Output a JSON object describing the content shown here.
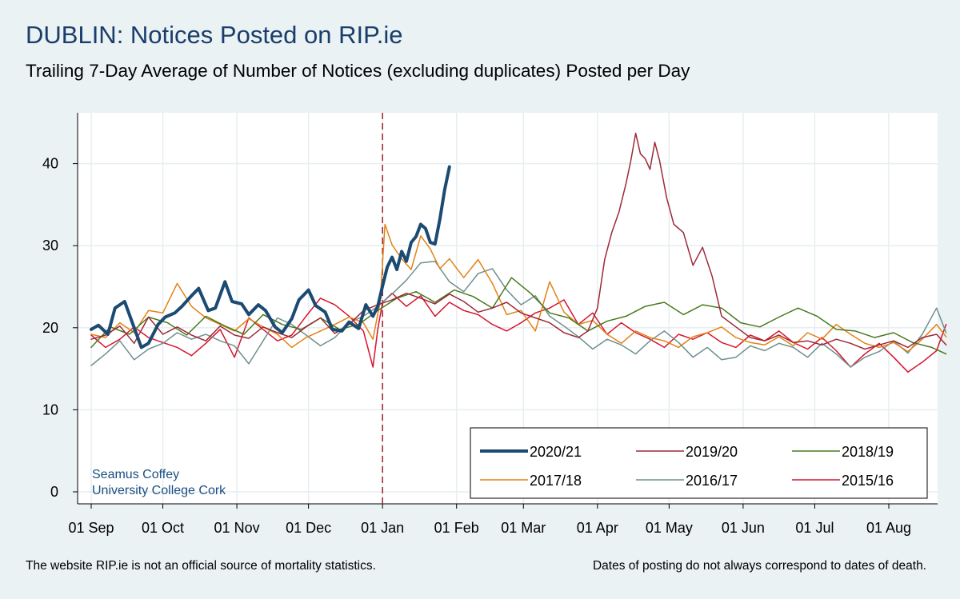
{
  "title": "DUBLIN: Notices Posted on RIP.ie",
  "subtitle": "Trailing 7-Day Average of Number of Notices (excluding duplicates) Posted per Day",
  "footnote_left": "The website RIP.ie is not an official source of mortality statistics.",
  "footnote_right": "Dates of posting do not always correspond to dates of death.",
  "credit": [
    "Seamus Coffey",
    "University College Cork"
  ],
  "colors": {
    "background": "#eaf2f3",
    "plot_background": "#ffffff",
    "grid": "#e6eef0",
    "title": "#1a3d6b",
    "credit": "#1a4f82",
    "reference_line": "#9e1e2e"
  },
  "chart_data": {
    "type": "line",
    "xlabel": "",
    "ylabel": "",
    "x_unit": "day of season (01 Sep = 0)",
    "xlim": [
      0,
      360
    ],
    "ylim": [
      0,
      46
    ],
    "grid": true,
    "yticks": [
      0,
      10,
      20,
      30,
      40
    ],
    "xticks": [
      {
        "day": 0,
        "label": "01 Sep"
      },
      {
        "day": 30,
        "label": "01 Oct"
      },
      {
        "day": 61,
        "label": "01 Nov"
      },
      {
        "day": 91,
        "label": "01 Dec"
      },
      {
        "day": 122,
        "label": "01 Jan"
      },
      {
        "day": 153,
        "label": "01 Feb"
      },
      {
        "day": 181,
        "label": "01 Mar"
      },
      {
        "day": 212,
        "label": "01 Apr"
      },
      {
        "day": 242,
        "label": "01 May"
      },
      {
        "day": 273,
        "label": "01 Jun"
      },
      {
        "day": 303,
        "label": "01 Jul"
      },
      {
        "day": 334,
        "label": "01 Aug"
      }
    ],
    "reference_line": {
      "day": 122,
      "style": "dashed"
    },
    "legend_position": "bottom-right",
    "series": [
      {
        "name": "2020/21",
        "color": "#1b4a72",
        "width": 4,
        "x": [
          0,
          3,
          7,
          10,
          14,
          17,
          21,
          24,
          28,
          31,
          35,
          38,
          42,
          45,
          49,
          52,
          56,
          59,
          63,
          66,
          70,
          73,
          77,
          80,
          84,
          87,
          91,
          94,
          98,
          101,
          105,
          108,
          112,
          115,
          118,
          120,
          122,
          124,
          126,
          128,
          130,
          132,
          134,
          136,
          138,
          140,
          142,
          144,
          146,
          148,
          150
        ],
        "y": [
          19.8,
          20.3,
          19.2,
          22.4,
          23.2,
          20.8,
          17.6,
          18.1,
          20.4,
          21.3,
          21.8,
          22.6,
          23.9,
          24.8,
          22.1,
          22.4,
          25.6,
          23.2,
          22.9,
          21.6,
          22.8,
          22.1,
          20.1,
          19.4,
          21.1,
          23.4,
          24.6,
          22.7,
          21.9,
          19.8,
          19.6,
          20.7,
          19.9,
          22.8,
          21.4,
          22.6,
          25.1,
          27.4,
          28.6,
          27.1,
          29.3,
          28.1,
          30.4,
          31.1,
          32.6,
          32.1,
          30.4,
          30.2,
          33.2,
          36.8,
          39.6
        ]
      },
      {
        "name": "2019/20",
        "color": "#9c2a38",
        "width": 1.5,
        "x": [
          0,
          6,
          12,
          18,
          24,
          30,
          36,
          42,
          48,
          54,
          60,
          66,
          72,
          78,
          84,
          90,
          96,
          102,
          108,
          114,
          120,
          126,
          132,
          138,
          144,
          150,
          156,
          162,
          168,
          174,
          180,
          186,
          192,
          198,
          204,
          208,
          212,
          215,
          218,
          221,
          224,
          226,
          228,
          230,
          232,
          234,
          236,
          238,
          241,
          244,
          248,
          252,
          256,
          260,
          264,
          270,
          276,
          282,
          288,
          294,
          300,
          306,
          312,
          318,
          324,
          330,
          336,
          342,
          348,
          354,
          358
        ],
        "y": [
          18.6,
          19.1,
          20.2,
          18.1,
          21.3,
          19.2,
          20.1,
          19.1,
          18.4,
          20.2,
          19.1,
          18.7,
          20.1,
          19.4,
          18.8,
          20.1,
          21.2,
          19.3,
          20.4,
          22.1,
          22.8,
          23.4,
          24.2,
          23.6,
          22.9,
          24.1,
          23.2,
          21.9,
          22.4,
          23.1,
          21.8,
          21.2,
          20.6,
          19.4,
          18.8,
          19.6,
          22.4,
          28.3,
          31.6,
          34.1,
          37.6,
          40.4,
          43.7,
          41.2,
          40.6,
          39.3,
          42.6,
          40.4,
          35.8,
          32.6,
          31.6,
          27.6,
          29.8,
          26.3,
          21.4,
          20.1,
          18.8,
          18.4,
          19.1,
          18.2,
          18.4,
          17.9,
          18.6,
          18.1,
          17.4,
          17.9,
          18.4,
          17.6,
          18.8,
          19.2,
          17.9
        ]
      },
      {
        "name": "2018/19",
        "color": "#4a7a1e",
        "width": 1.5,
        "x": [
          0,
          8,
          16,
          24,
          32,
          40,
          48,
          56,
          64,
          72,
          80,
          88,
          96,
          104,
          112,
          120,
          128,
          136,
          144,
          152,
          160,
          168,
          176,
          184,
          192,
          200,
          208,
          216,
          224,
          232,
          240,
          248,
          256,
          264,
          272,
          280,
          288,
          296,
          304,
          312,
          320,
          328,
          336,
          344,
          352,
          358
        ],
        "y": [
          17.6,
          20.1,
          19.2,
          21.3,
          20.6,
          19.1,
          21.4,
          20.2,
          19.2,
          21.6,
          20.4,
          19.8,
          21.2,
          19.8,
          20.4,
          22.1,
          23.6,
          24.4,
          23.1,
          24.6,
          23.8,
          22.4,
          26.1,
          24.2,
          21.8,
          21.2,
          19.6,
          20.8,
          21.4,
          22.6,
          23.1,
          21.6,
          22.8,
          22.4,
          20.6,
          20.1,
          21.3,
          22.4,
          21.4,
          19.8,
          19.6,
          18.8,
          19.4,
          18.2,
          17.6,
          16.8
        ]
      },
      {
        "name": "2017/18",
        "color": "#e38215",
        "width": 1.5,
        "x": [
          0,
          6,
          12,
          18,
          24,
          30,
          36,
          42,
          48,
          54,
          60,
          66,
          72,
          78,
          84,
          90,
          96,
          102,
          108,
          114,
          118,
          121,
          123,
          126,
          130,
          134,
          138,
          142,
          146,
          150,
          156,
          162,
          168,
          174,
          180,
          186,
          192,
          198,
          204,
          210,
          216,
          222,
          228,
          234,
          240,
          246,
          252,
          258,
          264,
          270,
          276,
          282,
          288,
          294,
          300,
          306,
          312,
          318,
          324,
          330,
          336,
          342,
          348,
          354,
          358
        ],
        "y": [
          19.2,
          18.8,
          20.6,
          19.4,
          22.1,
          21.8,
          25.4,
          22.6,
          21.2,
          20.4,
          19.6,
          21.1,
          20.1,
          19.2,
          17.6,
          18.8,
          19.6,
          20.4,
          21.3,
          20.6,
          18.6,
          23.2,
          32.6,
          30.1,
          28.4,
          27.1,
          31.2,
          29.6,
          27.2,
          28.4,
          26.1,
          28.3,
          25.4,
          21.6,
          22.1,
          19.6,
          25.6,
          21.9,
          20.4,
          20.9,
          19.2,
          18.1,
          19.6,
          18.8,
          18.4,
          17.6,
          18.9,
          19.4,
          20.1,
          18.8,
          18.2,
          17.9,
          18.9,
          17.8,
          19.4,
          18.6,
          20.4,
          19.2,
          18.1,
          17.6,
          18.2,
          17.1,
          18.6,
          20.4,
          18.9
        ]
      },
      {
        "name": "2016/17",
        "color": "#6f8f8f",
        "width": 1.5,
        "x": [
          0,
          6,
          12,
          18,
          24,
          30,
          36,
          42,
          48,
          54,
          60,
          66,
          72,
          78,
          84,
          90,
          96,
          102,
          108,
          114,
          120,
          126,
          132,
          138,
          144,
          150,
          156,
          162,
          168,
          174,
          180,
          186,
          192,
          198,
          204,
          210,
          216,
          222,
          228,
          234,
          240,
          246,
          252,
          258,
          264,
          270,
          276,
          282,
          288,
          294,
          300,
          306,
          312,
          318,
          324,
          330,
          336,
          342,
          348,
          354,
          358
        ],
        "y": [
          15.4,
          16.8,
          18.4,
          16.1,
          17.4,
          18.1,
          19.4,
          18.6,
          19.2,
          18.4,
          17.8,
          15.6,
          18.4,
          21.2,
          20.4,
          19.1,
          17.8,
          18.8,
          20.6,
          21.4,
          22.6,
          24.1,
          25.8,
          27.9,
          28.1,
          25.6,
          24.4,
          26.6,
          27.2,
          24.6,
          22.8,
          23.9,
          21.4,
          20.2,
          18.9,
          17.4,
          18.6,
          17.9,
          16.8,
          18.4,
          19.6,
          18.2,
          16.4,
          17.6,
          16.1,
          16.4,
          17.8,
          17.2,
          18.1,
          17.6,
          16.4,
          18.1,
          16.8,
          15.2,
          16.4,
          17.1,
          18.4,
          16.9,
          19.2,
          22.4,
          19.4
        ]
      },
      {
        "name": "2015/16",
        "color": "#d6152d",
        "width": 1.5,
        "x": [
          0,
          6,
          12,
          18,
          24,
          30,
          36,
          42,
          48,
          54,
          60,
          66,
          72,
          78,
          84,
          90,
          96,
          102,
          108,
          114,
          118,
          120,
          122,
          126,
          132,
          138,
          144,
          150,
          156,
          162,
          168,
          174,
          180,
          186,
          192,
          198,
          204,
          210,
          216,
          222,
          228,
          234,
          240,
          246,
          252,
          258,
          264,
          270,
          276,
          282,
          288,
          294,
          300,
          306,
          312,
          318,
          324,
          330,
          336,
          342,
          348,
          354,
          358
        ],
        "y": [
          19.1,
          17.6,
          18.6,
          20.1,
          18.8,
          18.2,
          17.6,
          16.6,
          18.1,
          19.8,
          16.4,
          21.2,
          19.8,
          18.4,
          19.1,
          21.4,
          23.6,
          22.8,
          21.4,
          19.6,
          15.2,
          19.8,
          23.1,
          24.2,
          22.6,
          23.9,
          21.4,
          23.1,
          22.1,
          21.6,
          20.4,
          19.6,
          20.6,
          21.8,
          22.4,
          23.4,
          20.4,
          21.8,
          19.2,
          20.6,
          19.4,
          18.6,
          17.6,
          19.2,
          18.6,
          19.4,
          18.2,
          17.6,
          19.1,
          18.4,
          19.6,
          18.2,
          17.4,
          18.8,
          17.2,
          15.2,
          16.8,
          18.1,
          16.4,
          14.6,
          15.8,
          17.2,
          20.4
        ]
      }
    ]
  }
}
